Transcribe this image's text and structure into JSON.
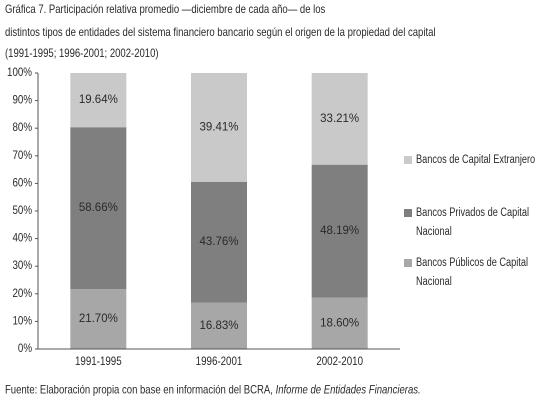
{
  "chart_data": {
    "type": "stacked_bar",
    "title": [
      "Gráfica 7. Participación relativa promedio —diciembre de cada año— de los",
      "distintos tipos de entidades del sistema financiero bancario según el origen de la propiedad del capital",
      "(1991-1995; 1996-2001; 2002-2010)"
    ],
    "categories": [
      "1991-1995",
      "1996-2001",
      "2002-2010"
    ],
    "series": [
      {
        "name": "Bancos Públicos de Capital Nacional",
        "color": "#a7a7a7",
        "values": [
          21.7,
          16.83,
          18.6
        ],
        "value_labels": [
          "21.70%",
          "16.83%",
          "18.60%"
        ]
      },
      {
        "name": "Bancos Privados de Capital Nacional",
        "color": "#7f7f7f",
        "values": [
          58.66,
          43.76,
          48.19
        ],
        "value_labels": [
          "58.66%",
          "43.76%",
          "48.19%"
        ]
      },
      {
        "name": "Bancos de Capital Extranjero",
        "color": "#c9c9c9",
        "values": [
          19.64,
          39.41,
          33.21
        ],
        "value_labels": [
          "19.64%",
          "39.41%",
          "33.21%"
        ]
      }
    ],
    "ylim": [
      0,
      100
    ],
    "yticks": [
      {
        "value": 0,
        "label": "0%"
      },
      {
        "value": 10,
        "label": "10%"
      },
      {
        "value": 20,
        "label": "20%"
      },
      {
        "value": 30,
        "label": "30%"
      },
      {
        "value": 40,
        "label": "40%"
      },
      {
        "value": 50,
        "label": "50%"
      },
      {
        "value": 60,
        "label": "60%"
      },
      {
        "value": 70,
        "label": "70%"
      },
      {
        "value": 80,
        "label": "80%"
      },
      {
        "value": 90,
        "label": "90%"
      },
      {
        "value": 100,
        "label": "100%"
      }
    ],
    "source": "Fuente: Elaboración propia con base en información del BCRA, ",
    "source_italic": "Informe de Entidades Financieras."
  }
}
